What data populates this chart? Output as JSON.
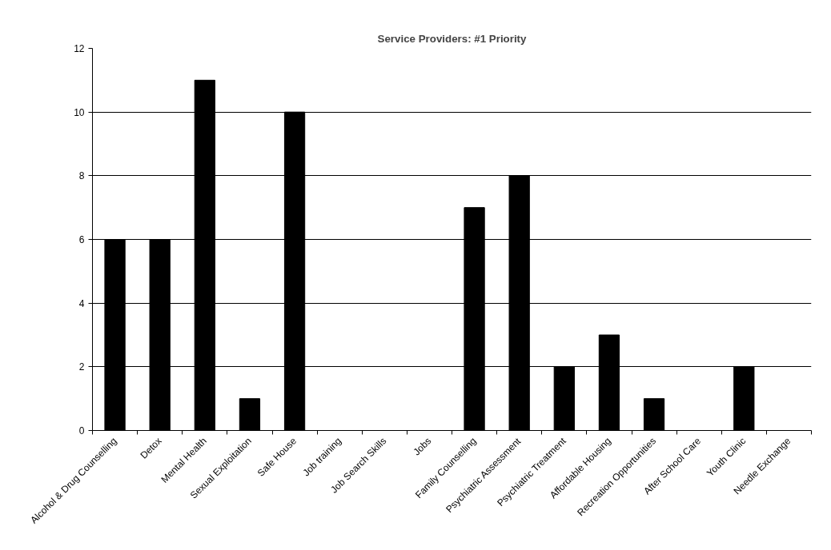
{
  "chart_data": {
    "type": "bar",
    "title": "Service Providers: #1 Priority",
    "categories": [
      "Alcohol & Drug Counselling",
      "Detox",
      "Mental Health",
      "Sexual Exploitation",
      "Safe House",
      "Job training",
      "Job Search Skills",
      "Jobs",
      "Family Counselling",
      "Psychiatric Assessment",
      "Psychiatric Treatment",
      "Affordable Housing",
      "Recreation Opportunities",
      "After School Care",
      "Youth Clinic",
      "Needle Exchange"
    ],
    "values": [
      6,
      6,
      11,
      1,
      10,
      0,
      0,
      0,
      7,
      8,
      2,
      3,
      1,
      0,
      2,
      0
    ],
    "color": "#000000",
    "ylim": [
      0,
      12
    ],
    "yticks": [
      0,
      2,
      4,
      6,
      8,
      10,
      12
    ],
    "grid": "y"
  }
}
